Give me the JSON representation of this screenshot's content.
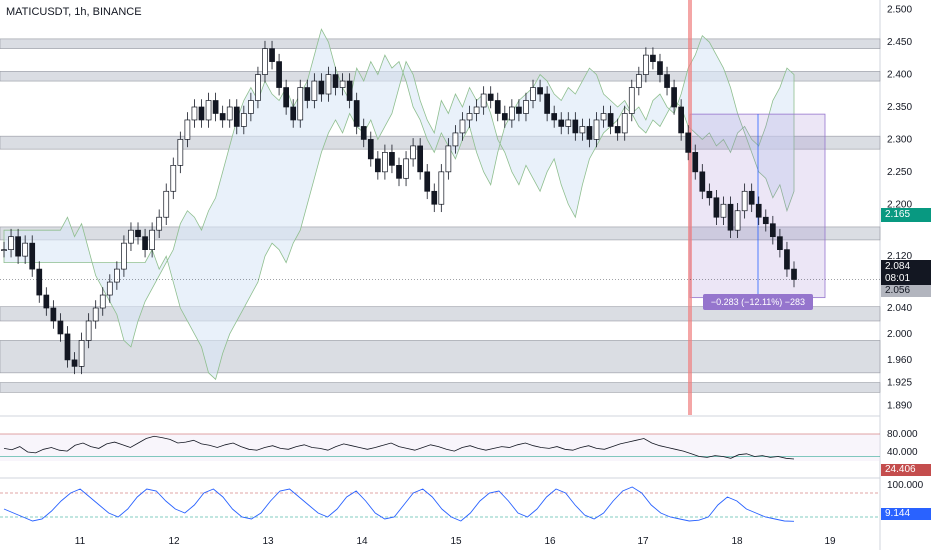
{
  "header": {
    "symbol": "MATICUSDT",
    "interval": "1h",
    "exchange": "BINANCE"
  },
  "colors": {
    "up": "#131722",
    "down": "#131722",
    "zone": "#d1d4dc",
    "cloud": "#dbe7f7",
    "cloud_line": "#8fbf8f",
    "measure": "#9575cd",
    "red_line": "#f08080",
    "rsi_line": "#131722",
    "stoch_line": "#2962ff"
  },
  "chart_data": [
    {
      "type": "candlestick",
      "x_ticks": [
        "11",
        "12",
        "13",
        "14",
        "15",
        "16",
        "17",
        "18",
        "19"
      ],
      "y_ticks": [
        "2.500",
        "2.450",
        "2.400",
        "2.350",
        "2.300",
        "2.250",
        "2.200",
        "2.165",
        "2.120",
        "2.084",
        "2.040",
        "2.000",
        "1.960",
        "1.925",
        "1.890"
      ],
      "ylim": [
        1.875,
        2.515
      ],
      "support_resistance_zones": [
        [
          2.44,
          2.455
        ],
        [
          2.39,
          2.405
        ],
        [
          2.285,
          2.305
        ],
        [
          2.145,
          2.165
        ],
        [
          2.02,
          2.042
        ],
        [
          1.94,
          1.99
        ],
        [
          1.91,
          1.925
        ]
      ],
      "close_series": [
        2.13,
        2.15,
        2.12,
        2.14,
        2.1,
        2.06,
        2.04,
        2.02,
        2.0,
        1.96,
        1.95,
        1.99,
        2.02,
        2.04,
        2.06,
        2.08,
        2.1,
        2.14,
        2.16,
        2.15,
        2.13,
        2.16,
        2.18,
        2.22,
        2.26,
        2.3,
        2.33,
        2.35,
        2.33,
        2.36,
        2.34,
        2.33,
        2.35,
        2.32,
        2.34,
        2.36,
        2.4,
        2.44,
        2.42,
        2.38,
        2.35,
        2.33,
        2.38,
        2.36,
        2.39,
        2.37,
        2.4,
        2.38,
        2.39,
        2.36,
        2.32,
        2.3,
        2.27,
        2.25,
        2.28,
        2.26,
        2.24,
        2.27,
        2.29,
        2.25,
        2.22,
        2.2,
        2.25,
        2.29,
        2.31,
        2.33,
        2.34,
        2.35,
        2.37,
        2.36,
        2.34,
        2.33,
        2.35,
        2.34,
        2.36,
        2.38,
        2.37,
        2.34,
        2.33,
        2.32,
        2.33,
        2.31,
        2.32,
        2.3,
        2.33,
        2.34,
        2.32,
        2.31,
        2.34,
        2.38,
        2.4,
        2.43,
        2.42,
        2.4,
        2.38,
        2.35,
        2.31,
        2.28,
        2.25,
        2.22,
        2.21,
        2.18,
        2.2,
        2.16,
        2.19,
        2.22,
        2.2,
        2.18,
        2.17,
        2.15,
        2.13,
        2.1,
        2.084
      ],
      "last_price": "2.084",
      "countdown": "08:01",
      "low_label": "2.056",
      "support_label": "2.165",
      "measure_label": "−0.283 (−12.11%) −283"
    },
    {
      "type": "line",
      "name": "",
      "y_ticks": [
        "80.000",
        "40.000"
      ],
      "ylim": [
        0,
        100
      ],
      "last_value_label": "24.406",
      "values": [
        48,
        45,
        52,
        40,
        38,
        46,
        50,
        44,
        42,
        55,
        60,
        52,
        48,
        58,
        62,
        56,
        50,
        60,
        70,
        75,
        72,
        68,
        60,
        62,
        66,
        58,
        55,
        50,
        56,
        60,
        52,
        46,
        44,
        50,
        54,
        48,
        46,
        52,
        56,
        50,
        48,
        44,
        52,
        58,
        54,
        50,
        46,
        50,
        55,
        60,
        52,
        48,
        44,
        50,
        56,
        52,
        46,
        42,
        50,
        54,
        48,
        44,
        48,
        52,
        50,
        56,
        60,
        54,
        50,
        48,
        52,
        46,
        44,
        50,
        54,
        48,
        46,
        52,
        58,
        62,
        66,
        70,
        60,
        54,
        50,
        46,
        42,
        36,
        30,
        28,
        32,
        30,
        26,
        34,
        36,
        30,
        32,
        28,
        30,
        26,
        24.4
      ]
    },
    {
      "type": "line",
      "name": "",
      "y_ticks": [
        "100.000"
      ],
      "ylim": [
        0,
        100
      ],
      "last_value_label": "9.144",
      "values": [
        40,
        30,
        20,
        10,
        15,
        35,
        60,
        80,
        90,
        70,
        50,
        30,
        20,
        40,
        70,
        90,
        85,
        60,
        40,
        30,
        50,
        80,
        90,
        70,
        40,
        20,
        15,
        30,
        60,
        85,
        90,
        70,
        50,
        30,
        20,
        40,
        70,
        85,
        60,
        30,
        15,
        20,
        50,
        80,
        90,
        70,
        40,
        20,
        10,
        30,
        60,
        80,
        85,
        60,
        30,
        20,
        40,
        70,
        90,
        80,
        50,
        25,
        15,
        30,
        60,
        85,
        95,
        80,
        50,
        30,
        20,
        15,
        10,
        12,
        20,
        50,
        70,
        60,
        40,
        30,
        20,
        15,
        10,
        9.1
      ]
    }
  ]
}
